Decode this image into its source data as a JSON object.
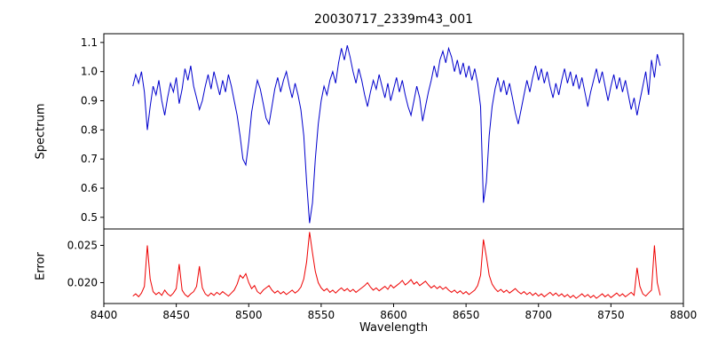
{
  "title": "20030717_2339m43_001",
  "chart_data": {
    "type": "line",
    "title": "20030717_2339m43_001",
    "xlabel": "Wavelength",
    "xlim": [
      8400,
      8800
    ],
    "xticks": [
      "8400",
      "8450",
      "8500",
      "8550",
      "8600",
      "8650",
      "8700",
      "8750",
      "8800"
    ],
    "grid": false,
    "legend": "none",
    "x": [
      8420,
      8422,
      8424,
      8426,
      8428,
      8430,
      8432,
      8434,
      8436,
      8438,
      8440,
      8442,
      8444,
      8446,
      8448,
      8450,
      8452,
      8454,
      8456,
      8458,
      8460,
      8462,
      8464,
      8466,
      8468,
      8470,
      8472,
      8474,
      8476,
      8478,
      8480,
      8482,
      8484,
      8486,
      8488,
      8490,
      8492,
      8494,
      8496,
      8498,
      8500,
      8502,
      8504,
      8506,
      8508,
      8510,
      8512,
      8514,
      8516,
      8518,
      8520,
      8522,
      8524,
      8526,
      8528,
      8530,
      8532,
      8534,
      8536,
      8538,
      8540,
      8542,
      8544,
      8546,
      8548,
      8550,
      8552,
      8554,
      8556,
      8558,
      8560,
      8562,
      8564,
      8566,
      8568,
      8570,
      8572,
      8574,
      8576,
      8578,
      8580,
      8582,
      8584,
      8586,
      8588,
      8590,
      8592,
      8594,
      8596,
      8598,
      8600,
      8602,
      8604,
      8606,
      8608,
      8610,
      8612,
      8614,
      8616,
      8618,
      8620,
      8622,
      8624,
      8626,
      8628,
      8630,
      8632,
      8634,
      8636,
      8638,
      8640,
      8642,
      8644,
      8646,
      8648,
      8650,
      8652,
      8654,
      8656,
      8658,
      8660,
      8662,
      8664,
      8666,
      8668,
      8670,
      8672,
      8674,
      8676,
      8678,
      8680,
      8682,
      8684,
      8686,
      8688,
      8690,
      8692,
      8694,
      8696,
      8698,
      8700,
      8702,
      8704,
      8706,
      8708,
      8710,
      8712,
      8714,
      8716,
      8718,
      8720,
      8722,
      8724,
      8726,
      8728,
      8730,
      8732,
      8734,
      8736,
      8738,
      8740,
      8742,
      8744,
      8746,
      8748,
      8750,
      8752,
      8754,
      8756,
      8758,
      8760,
      8762,
      8764,
      8766,
      8768,
      8770,
      8772,
      8774,
      8776,
      8778,
      8780,
      8782,
      8784
    ],
    "subplots": [
      {
        "name": "spectrum",
        "ylabel": "Spectrum",
        "ylim": [
          0.46,
          1.13
        ],
        "yticks": [
          "0.5",
          "0.6",
          "0.7",
          "0.8",
          "0.9",
          "1.0",
          "1.1"
        ],
        "color": "#0000cd",
        "y": [
          0.95,
          0.99,
          0.96,
          1.0,
          0.93,
          0.8,
          0.88,
          0.95,
          0.92,
          0.97,
          0.9,
          0.85,
          0.91,
          0.96,
          0.93,
          0.98,
          0.89,
          0.94,
          1.01,
          0.97,
          1.02,
          0.95,
          0.91,
          0.87,
          0.9,
          0.95,
          0.99,
          0.94,
          1.0,
          0.96,
          0.92,
          0.97,
          0.93,
          0.99,
          0.95,
          0.9,
          0.85,
          0.78,
          0.7,
          0.68,
          0.76,
          0.86,
          0.92,
          0.97,
          0.94,
          0.89,
          0.84,
          0.82,
          0.88,
          0.94,
          0.98,
          0.93,
          0.97,
          1.0,
          0.95,
          0.91,
          0.96,
          0.92,
          0.87,
          0.78,
          0.62,
          0.48,
          0.55,
          0.7,
          0.82,
          0.9,
          0.95,
          0.92,
          0.97,
          1.0,
          0.96,
          1.03,
          1.08,
          1.04,
          1.09,
          1.05,
          1.0,
          0.96,
          1.01,
          0.97,
          0.92,
          0.88,
          0.93,
          0.97,
          0.94,
          0.99,
          0.95,
          0.91,
          0.96,
          0.9,
          0.94,
          0.98,
          0.93,
          0.97,
          0.92,
          0.88,
          0.85,
          0.9,
          0.95,
          0.91,
          0.83,
          0.88,
          0.93,
          0.97,
          1.02,
          0.98,
          1.04,
          1.07,
          1.03,
          1.08,
          1.05,
          1.0,
          1.04,
          0.99,
          1.03,
          0.98,
          1.02,
          0.97,
          1.01,
          0.96,
          0.88,
          0.55,
          0.62,
          0.78,
          0.88,
          0.94,
          0.98,
          0.93,
          0.97,
          0.92,
          0.96,
          0.91,
          0.86,
          0.82,
          0.87,
          0.92,
          0.97,
          0.93,
          0.98,
          1.02,
          0.97,
          1.01,
          0.96,
          1.0,
          0.95,
          0.91,
          0.96,
          0.92,
          0.97,
          1.01,
          0.96,
          1.0,
          0.95,
          0.99,
          0.94,
          0.98,
          0.93,
          0.88,
          0.93,
          0.97,
          1.01,
          0.96,
          1.0,
          0.95,
          0.9,
          0.95,
          0.99,
          0.94,
          0.98,
          0.93,
          0.97,
          0.92,
          0.87,
          0.91,
          0.85,
          0.9,
          0.95,
          1.0,
          0.92,
          1.04,
          0.98,
          1.06,
          1.02
        ]
      },
      {
        "name": "error",
        "ylabel": "Error",
        "ylim": [
          0.0172,
          0.0272
        ],
        "yticks": [
          "0.020",
          "0.025"
        ],
        "color": "#ee0000",
        "y": [
          0.0182,
          0.0185,
          0.0181,
          0.0186,
          0.0195,
          0.025,
          0.0205,
          0.0188,
          0.0184,
          0.0187,
          0.0183,
          0.019,
          0.0185,
          0.0182,
          0.0186,
          0.0192,
          0.0225,
          0.019,
          0.0184,
          0.0181,
          0.0185,
          0.0188,
          0.0195,
          0.0222,
          0.0193,
          0.0185,
          0.0182,
          0.0186,
          0.0183,
          0.0187,
          0.0184,
          0.0188,
          0.0185,
          0.0182,
          0.0186,
          0.019,
          0.0198,
          0.021,
          0.0206,
          0.0212,
          0.02,
          0.0192,
          0.0196,
          0.0188,
          0.0185,
          0.019,
          0.0193,
          0.0196,
          0.019,
          0.0186,
          0.0189,
          0.0185,
          0.0188,
          0.0184,
          0.0187,
          0.019,
          0.0186,
          0.0189,
          0.0194,
          0.0205,
          0.0228,
          0.0268,
          0.024,
          0.0215,
          0.02,
          0.0193,
          0.0189,
          0.0192,
          0.0187,
          0.019,
          0.0186,
          0.019,
          0.0193,
          0.0189,
          0.0192,
          0.0188,
          0.0191,
          0.0187,
          0.019,
          0.0193,
          0.0196,
          0.02,
          0.0194,
          0.019,
          0.0193,
          0.0189,
          0.0192,
          0.0195,
          0.0191,
          0.0197,
          0.0193,
          0.0196,
          0.0199,
          0.0203,
          0.0197,
          0.02,
          0.0204,
          0.0198,
          0.0201,
          0.0196,
          0.0199,
          0.0202,
          0.0197,
          0.0193,
          0.0196,
          0.0192,
          0.0195,
          0.0191,
          0.0194,
          0.019,
          0.0187,
          0.019,
          0.0186,
          0.0189,
          0.0185,
          0.0188,
          0.0184,
          0.0187,
          0.019,
          0.0196,
          0.021,
          0.0258,
          0.0235,
          0.021,
          0.0198,
          0.0192,
          0.0188,
          0.0191,
          0.0187,
          0.019,
          0.0186,
          0.0189,
          0.0192,
          0.0188,
          0.0185,
          0.0188,
          0.0184,
          0.0187,
          0.0183,
          0.0186,
          0.0182,
          0.0185,
          0.0181,
          0.0184,
          0.0187,
          0.0183,
          0.0186,
          0.0182,
          0.0185,
          0.0181,
          0.0184,
          0.018,
          0.0183,
          0.0179,
          0.0182,
          0.0185,
          0.0181,
          0.0184,
          0.018,
          0.0183,
          0.0179,
          0.0182,
          0.0185,
          0.0181,
          0.0184,
          0.018,
          0.0183,
          0.0186,
          0.0182,
          0.0185,
          0.0181,
          0.0184,
          0.0187,
          0.0183,
          0.022,
          0.0195,
          0.0185,
          0.0182,
          0.0186,
          0.019,
          0.025,
          0.02,
          0.0183
        ]
      }
    ]
  }
}
